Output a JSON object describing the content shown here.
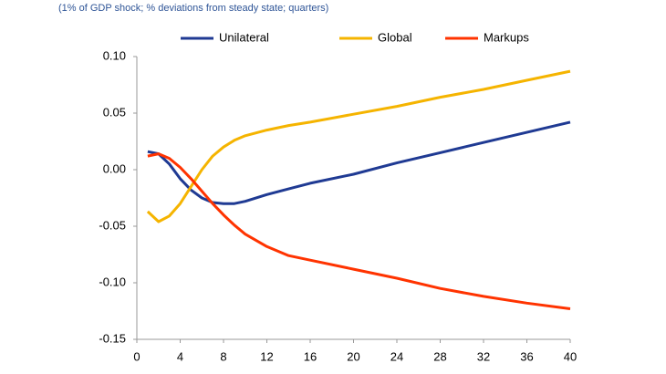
{
  "chart_data": {
    "type": "line",
    "subtitle": "(1% of GDP shock; % deviations from steady state; quarters)",
    "x": [
      1,
      2,
      3,
      4,
      5,
      6,
      7,
      8,
      9,
      10,
      12,
      14,
      16,
      20,
      24,
      28,
      32,
      36,
      40
    ],
    "series": [
      {
        "name": "Unilateral",
        "color": "#1f3a93",
        "values": [
          0.016,
          0.014,
          0.005,
          -0.008,
          -0.018,
          -0.025,
          -0.029,
          -0.03,
          -0.03,
          -0.028,
          -0.022,
          -0.017,
          -0.012,
          -0.004,
          0.006,
          0.015,
          0.024,
          0.033,
          0.042
        ]
      },
      {
        "name": "Global",
        "color": "#f5b400",
        "values": [
          -0.037,
          -0.046,
          -0.041,
          -0.03,
          -0.015,
          0.0,
          0.012,
          0.02,
          0.026,
          0.03,
          0.035,
          0.039,
          0.042,
          0.049,
          0.056,
          0.064,
          0.071,
          0.079,
          0.087
        ]
      },
      {
        "name": "Markups",
        "color": "#ff3300",
        "values": [
          0.012,
          0.014,
          0.01,
          0.002,
          -0.008,
          -0.019,
          -0.03,
          -0.04,
          -0.049,
          -0.057,
          -0.068,
          -0.076,
          -0.08,
          -0.088,
          -0.096,
          -0.105,
          -0.112,
          -0.118,
          -0.123
        ]
      }
    ],
    "xlim": [
      0,
      40
    ],
    "xticks": [
      0,
      4,
      8,
      12,
      16,
      20,
      24,
      28,
      32,
      36,
      40
    ],
    "ylim": [
      -0.15,
      0.1
    ],
    "yticks": [
      {
        "value": -0.15,
        "label": "-0.15"
      },
      {
        "value": -0.1,
        "label": "-0.10"
      },
      {
        "value": -0.05,
        "label": "-0.05"
      },
      {
        "value": 0,
        "label": "0.00"
      },
      {
        "value": 0.05,
        "label": "0.05"
      },
      {
        "value": 0.1,
        "label": "0.10"
      }
    ],
    "grid": false,
    "legend": "top"
  }
}
